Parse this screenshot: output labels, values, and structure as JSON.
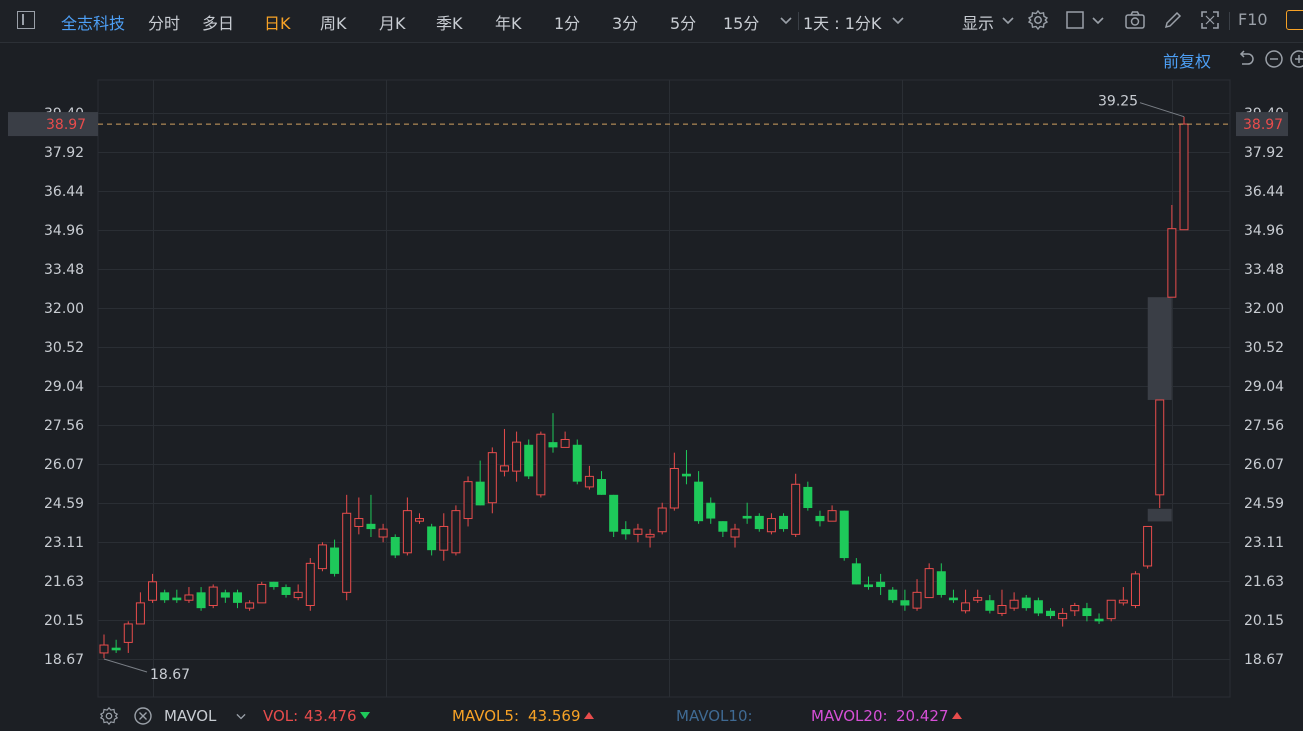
{
  "toolbar": {
    "stock_name": "全志科技",
    "periods": [
      "分时",
      "多日",
      "日K",
      "周K",
      "月K",
      "季K",
      "年K",
      "1分",
      "3分",
      "5分",
      "15分"
    ],
    "active_period": "日K",
    "more_icon": "chevron-down-icon",
    "range_label": "1天 : 1分K",
    "display_label": "显示",
    "f10_label": "F10",
    "icons": [
      "settings-icon",
      "square-icon",
      "camera-icon",
      "pencil-icon",
      "fullscreen-icon"
    ]
  },
  "adjust_label": "前复权",
  "price_axis": {
    "labels": [
      "39.40",
      "37.92",
      "36.44",
      "34.96",
      "33.48",
      "32.00",
      "30.52",
      "29.04",
      "27.56",
      "26.07",
      "24.59",
      "23.11",
      "21.63",
      "20.15",
      "18.67"
    ],
    "current_price": "38.97",
    "high_label": "39.25",
    "low_label": "18.67"
  },
  "chart_data": {
    "type": "candlestick",
    "ylim": [
      18.67,
      39.4
    ],
    "note_high": 39.25,
    "note_low": 18.67,
    "current": 38.97,
    "candles": [
      [
        18.9,
        19.2,
        18.7,
        19.6
      ],
      [
        19.1,
        19.0,
        18.9,
        19.4
      ],
      [
        19.3,
        20.0,
        18.9,
        20.1
      ],
      [
        20.0,
        20.8,
        20.0,
        21.2
      ],
      [
        20.9,
        21.6,
        20.8,
        21.9
      ],
      [
        21.2,
        20.9,
        20.8,
        21.3
      ],
      [
        21.0,
        20.9,
        20.8,
        21.3
      ],
      [
        20.9,
        21.1,
        20.8,
        21.4
      ],
      [
        21.2,
        20.6,
        20.5,
        21.4
      ],
      [
        20.7,
        21.4,
        20.6,
        21.5
      ],
      [
        21.2,
        21.0,
        20.8,
        21.3
      ],
      [
        21.2,
        20.8,
        20.6,
        21.3
      ],
      [
        20.6,
        20.8,
        20.5,
        20.9
      ],
      [
        20.8,
        21.5,
        20.8,
        21.6
      ],
      [
        21.6,
        21.4,
        21.3,
        21.6
      ],
      [
        21.4,
        21.1,
        21.0,
        21.5
      ],
      [
        21.0,
        21.2,
        20.9,
        21.5
      ],
      [
        20.7,
        22.3,
        20.5,
        22.5
      ],
      [
        22.1,
        23.0,
        22.0,
        23.1
      ],
      [
        22.9,
        21.9,
        21.8,
        23.2
      ],
      [
        21.2,
        24.2,
        20.9,
        24.9
      ],
      [
        23.7,
        24.0,
        23.4,
        24.8
      ],
      [
        23.8,
        23.6,
        23.3,
        24.9
      ],
      [
        23.3,
        23.6,
        23.1,
        23.8
      ],
      [
        23.3,
        22.6,
        22.5,
        23.4
      ],
      [
        22.7,
        24.3,
        22.6,
        24.8
      ],
      [
        23.9,
        24.0,
        23.8,
        24.2
      ],
      [
        23.7,
        22.8,
        22.6,
        23.8
      ],
      [
        22.8,
        23.7,
        22.4,
        24.2
      ],
      [
        22.7,
        24.3,
        22.6,
        24.5
      ],
      [
        24.0,
        25.4,
        23.7,
        25.6
      ],
      [
        25.4,
        24.5,
        24.5,
        26.2
      ],
      [
        24.6,
        26.5,
        24.2,
        26.7
      ],
      [
        25.8,
        26.0,
        25.6,
        27.4
      ],
      [
        25.8,
        26.9,
        25.4,
        27.3
      ],
      [
        26.8,
        25.6,
        25.5,
        27.0
      ],
      [
        24.9,
        27.2,
        24.8,
        27.3
      ],
      [
        26.9,
        26.7,
        26.5,
        28.0
      ],
      [
        26.7,
        27.0,
        26.7,
        27.3
      ],
      [
        26.8,
        25.4,
        25.3,
        27.0
      ],
      [
        25.2,
        25.6,
        25.1,
        26.0
      ],
      [
        25.5,
        24.9,
        24.9,
        25.8
      ],
      [
        24.9,
        23.5,
        23.3,
        24.9
      ],
      [
        23.6,
        23.4,
        23.2,
        23.9
      ],
      [
        23.4,
        23.6,
        23.1,
        23.8
      ],
      [
        23.3,
        23.4,
        22.9,
        23.6
      ],
      [
        23.5,
        24.4,
        23.4,
        24.6
      ],
      [
        24.4,
        25.9,
        24.3,
        26.5
      ],
      [
        25.7,
        25.6,
        25.3,
        26.6
      ],
      [
        25.4,
        23.9,
        23.8,
        25.8
      ],
      [
        24.6,
        24.0,
        23.8,
        24.8
      ],
      [
        23.9,
        23.5,
        23.3,
        23.9
      ],
      [
        23.3,
        23.6,
        22.9,
        23.8
      ],
      [
        24.1,
        24.0,
        23.8,
        24.6
      ],
      [
        24.1,
        23.6,
        23.5,
        24.2
      ],
      [
        23.5,
        24.0,
        23.4,
        24.2
      ],
      [
        24.1,
        23.6,
        23.5,
        24.2
      ],
      [
        23.4,
        25.3,
        23.3,
        25.7
      ],
      [
        25.2,
        24.4,
        24.3,
        25.4
      ],
      [
        24.1,
        23.9,
        23.7,
        24.3
      ],
      [
        23.9,
        24.3,
        23.9,
        24.5
      ],
      [
        24.3,
        22.5,
        22.4,
        24.3
      ],
      [
        22.3,
        21.5,
        21.5,
        22.5
      ],
      [
        21.5,
        21.4,
        21.3,
        21.8
      ],
      [
        21.6,
        21.4,
        21.1,
        21.9
      ],
      [
        21.3,
        20.9,
        20.8,
        21.4
      ],
      [
        20.9,
        20.7,
        20.5,
        21.3
      ],
      [
        20.6,
        21.2,
        20.5,
        21.7
      ],
      [
        21.0,
        22.1,
        21.0,
        22.3
      ],
      [
        22.0,
        21.1,
        21.0,
        22.3
      ],
      [
        21.0,
        20.9,
        20.8,
        21.3
      ],
      [
        20.5,
        20.8,
        20.4,
        21.3
      ],
      [
        20.9,
        21.0,
        20.8,
        21.3
      ],
      [
        20.9,
        20.5,
        20.4,
        21.1
      ],
      [
        20.4,
        20.7,
        20.3,
        21.3
      ],
      [
        20.6,
        20.9,
        20.5,
        21.2
      ],
      [
        21.0,
        20.6,
        20.5,
        21.1
      ],
      [
        20.9,
        20.4,
        20.3,
        21.0
      ],
      [
        20.5,
        20.3,
        20.2,
        20.6
      ],
      [
        20.2,
        20.4,
        19.9,
        20.6
      ],
      [
        20.5,
        20.7,
        20.3,
        20.8
      ],
      [
        20.6,
        20.3,
        20.1,
        20.8
      ],
      [
        20.2,
        20.1,
        20.0,
        20.4
      ],
      [
        20.2,
        20.9,
        20.1,
        20.9
      ],
      [
        20.8,
        20.9,
        20.7,
        21.4
      ],
      [
        20.7,
        21.9,
        20.6,
        22.0
      ],
      [
        22.2,
        23.7,
        22.1,
        23.7
      ],
      [
        24.9,
        28.5,
        24.4,
        28.5
      ],
      [
        32.4,
        35.0,
        32.4,
        35.9
      ],
      [
        34.96,
        38.97,
        34.96,
        39.25
      ]
    ],
    "gap_boxes": [
      {
        "low": 23.89,
        "high": 24.37
      },
      {
        "low": 28.5,
        "high": 32.4
      }
    ]
  },
  "indicator_bar": {
    "name": "MAVOL",
    "vol_label": "VOL:",
    "vol_value": "43.476",
    "mavol5_label": "MAVOL5:",
    "mavol5_value": "43.569",
    "mavol10_label": "MAVOL10:",
    "mavol20_label": "MAVOL20:",
    "mavol20_value": "20.427"
  },
  "colors": {
    "up": "#e84c4c",
    "down": "#1ec95a",
    "active": "#f7a226",
    "link": "#4d9ff5",
    "mavol5": "#f7a226",
    "mavol10": "#4a7aa8",
    "mavol20": "#d64fd6"
  }
}
